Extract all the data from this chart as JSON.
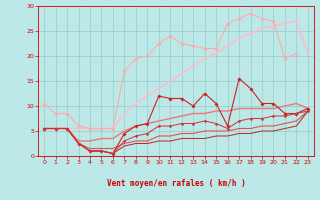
{
  "xlabel": "Vent moyen/en rafales ( km/h )",
  "xlim": [
    -0.5,
    23.5
  ],
  "ylim": [
    0,
    30
  ],
  "xticks": [
    0,
    1,
    2,
    3,
    4,
    5,
    6,
    7,
    8,
    9,
    10,
    11,
    12,
    13,
    14,
    15,
    16,
    17,
    18,
    19,
    20,
    21,
    22,
    23
  ],
  "yticks": [
    0,
    5,
    10,
    15,
    20,
    25,
    30
  ],
  "bg_color": "#bde8e8",
  "grid_color": "#99cccc",
  "lines": [
    {
      "x": [
        0,
        1,
        2,
        3,
        4,
        5,
        6,
        7,
        8,
        9,
        10,
        11,
        12,
        13,
        14,
        15,
        16,
        17,
        18,
        19,
        20,
        21,
        22
      ],
      "y": [
        10.5,
        8.5,
        8.5,
        6.0,
        5.5,
        5.5,
        5.5,
        17.0,
        19.5,
        20.0,
        22.5,
        24.0,
        22.5,
        22.0,
        21.5,
        21.5,
        26.5,
        27.5,
        28.5,
        27.5,
        27.0,
        19.5,
        20.5
      ],
      "color": "#ffaaaa",
      "marker": "D",
      "markersize": 1.8,
      "linewidth": 0.8
    },
    {
      "x": [
        0,
        1,
        2,
        3,
        4,
        5,
        6,
        7,
        8,
        9,
        10,
        11,
        12,
        13,
        14,
        15,
        16,
        17,
        18,
        19,
        20,
        21,
        22,
        23
      ],
      "y": [
        5.5,
        5.5,
        5.5,
        5.5,
        5.5,
        5.5,
        5.5,
        8.5,
        10.5,
        12.0,
        13.5,
        15.0,
        16.5,
        18.0,
        19.5,
        20.5,
        22.0,
        23.5,
        24.5,
        25.5,
        26.0,
        26.5,
        27.0,
        20.5
      ],
      "color": "#ffbbcc",
      "marker": null,
      "linewidth": 1.2
    },
    {
      "x": [
        0,
        1,
        2,
        3,
        4,
        5,
        6,
        7,
        8,
        9,
        10,
        11,
        12,
        13,
        14,
        15,
        16,
        17,
        18,
        19,
        20,
        21,
        22,
        23
      ],
      "y": [
        5.5,
        5.5,
        5.5,
        2.5,
        1.0,
        1.0,
        0.5,
        4.5,
        6.0,
        6.5,
        12.0,
        11.5,
        11.5,
        10.0,
        12.5,
        10.5,
        6.0,
        15.5,
        13.5,
        10.5,
        10.5,
        8.5,
        8.5,
        9.5
      ],
      "color": "#cc2222",
      "marker": "D",
      "markersize": 1.8,
      "linewidth": 0.8
    },
    {
      "x": [
        0,
        1,
        2,
        3,
        4,
        5,
        6,
        7,
        8,
        9,
        10,
        11,
        12,
        13,
        14,
        15,
        16,
        17,
        18,
        19,
        20,
        21,
        22,
        23
      ],
      "y": [
        5.5,
        5.5,
        5.5,
        3.0,
        3.0,
        3.5,
        3.5,
        5.0,
        6.0,
        6.5,
        7.0,
        7.5,
        8.0,
        8.5,
        8.5,
        9.0,
        9.0,
        9.5,
        9.5,
        9.5,
        9.5,
        10.0,
        10.5,
        9.5
      ],
      "color": "#ee7777",
      "marker": null,
      "linewidth": 1.0
    },
    {
      "x": [
        0,
        1,
        2,
        3,
        4,
        5,
        6,
        7,
        8,
        9,
        10,
        11,
        12,
        13,
        14,
        15,
        16,
        17,
        18,
        19,
        20,
        21,
        22,
        23
      ],
      "y": [
        5.5,
        5.5,
        5.5,
        2.5,
        1.0,
        1.0,
        0.5,
        3.0,
        4.0,
        4.5,
        6.0,
        6.0,
        6.5,
        6.5,
        7.0,
        6.5,
        5.5,
        7.0,
        7.5,
        7.5,
        8.0,
        8.0,
        8.5,
        9.0
      ],
      "color": "#cc3333",
      "marker": "D",
      "markersize": 1.5,
      "linewidth": 0.7
    },
    {
      "x": [
        0,
        1,
        2,
        3,
        4,
        5,
        6,
        7,
        8,
        9,
        10,
        11,
        12,
        13,
        14,
        15,
        16,
        17,
        18,
        19,
        20,
        21,
        22,
        23
      ],
      "y": [
        5.5,
        5.5,
        5.5,
        2.5,
        1.5,
        1.5,
        1.5,
        2.5,
        3.0,
        3.0,
        4.0,
        4.0,
        4.5,
        4.5,
        5.0,
        5.0,
        5.0,
        5.5,
        5.5,
        6.0,
        6.0,
        6.5,
        7.0,
        9.0
      ],
      "color": "#dd5555",
      "marker": null,
      "linewidth": 0.8
    },
    {
      "x": [
        0,
        1,
        2,
        3,
        4,
        5,
        6,
        7,
        8,
        9,
        10,
        11,
        12,
        13,
        14,
        15,
        16,
        17,
        18,
        19,
        20,
        21,
        22,
        23
      ],
      "y": [
        5.5,
        5.5,
        5.5,
        2.5,
        1.0,
        1.0,
        0.5,
        2.0,
        2.5,
        2.5,
        3.0,
        3.0,
        3.5,
        3.5,
        3.5,
        4.0,
        4.0,
        4.5,
        4.5,
        5.0,
        5.0,
        5.5,
        6.0,
        9.0
      ],
      "color": "#bb2222",
      "marker": null,
      "linewidth": 0.7
    }
  ],
  "wind_arrows": {
    "positions": [
      0,
      1,
      2,
      3,
      4,
      5,
      6,
      7,
      8,
      9,
      10,
      11,
      12,
      13,
      14,
      15,
      16,
      17,
      18,
      19,
      20,
      21,
      22,
      23
    ],
    "angles_deg": [
      45,
      45,
      225,
      225,
      225,
      225,
      225,
      225,
      225,
      225,
      225,
      225,
      225,
      225,
      225,
      225,
      225,
      225,
      225,
      225,
      225,
      225,
      225,
      225
    ],
    "color": "#cc0000"
  }
}
